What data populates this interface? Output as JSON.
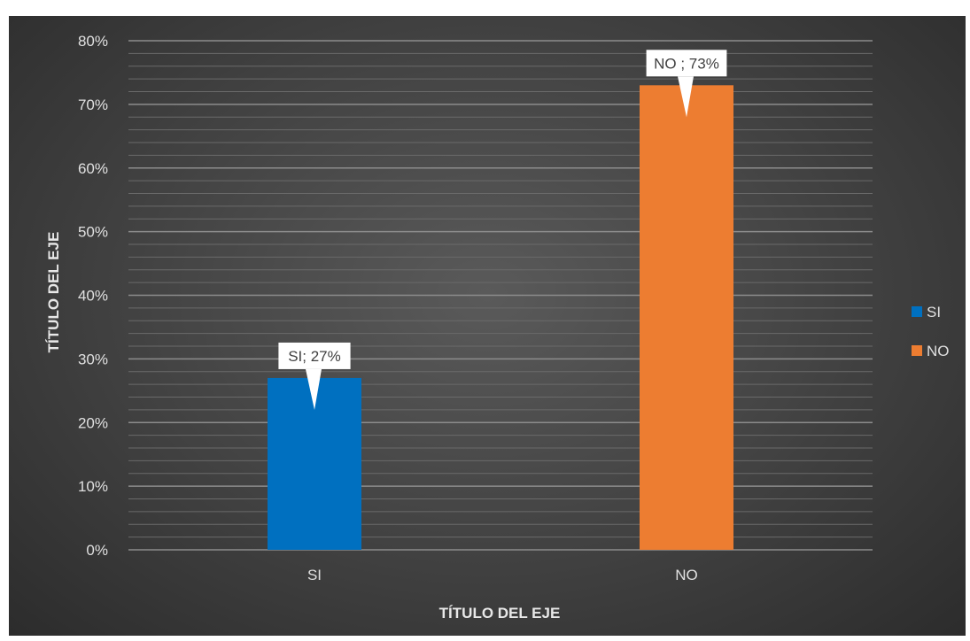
{
  "chart_data": {
    "type": "bar",
    "categories": [
      "SI",
      "NO"
    ],
    "values": [
      27,
      73
    ],
    "value_unit": "%",
    "colors": [
      "#0070c0",
      "#ed7d31"
    ],
    "data_labels": [
      "SI; 27%",
      "NO ; 73%"
    ],
    "title": "",
    "xlabel": "TÍTULO DEL EJE",
    "ylabel": "TÍTULO DEL EJE",
    "ylim": [
      0,
      80
    ],
    "y_ticks": [
      {
        "value": 0,
        "label": "0%"
      },
      {
        "value": 10,
        "label": "10%"
      },
      {
        "value": 20,
        "label": "20%"
      },
      {
        "value": 30,
        "label": "30%"
      },
      {
        "value": 40,
        "label": "40%"
      },
      {
        "value": 50,
        "label": "50%"
      },
      {
        "value": 60,
        "label": "60%"
      },
      {
        "value": 70,
        "label": "70%"
      },
      {
        "value": 80,
        "label": "80%"
      }
    ],
    "grid": true,
    "minor_grid_step": 2,
    "legend": {
      "position": "right",
      "entries": [
        {
          "label": "SI",
          "color": "#0070c0"
        },
        {
          "label": "NO",
          "color": "#ed7d31"
        }
      ]
    },
    "background": "dark-gradient"
  }
}
